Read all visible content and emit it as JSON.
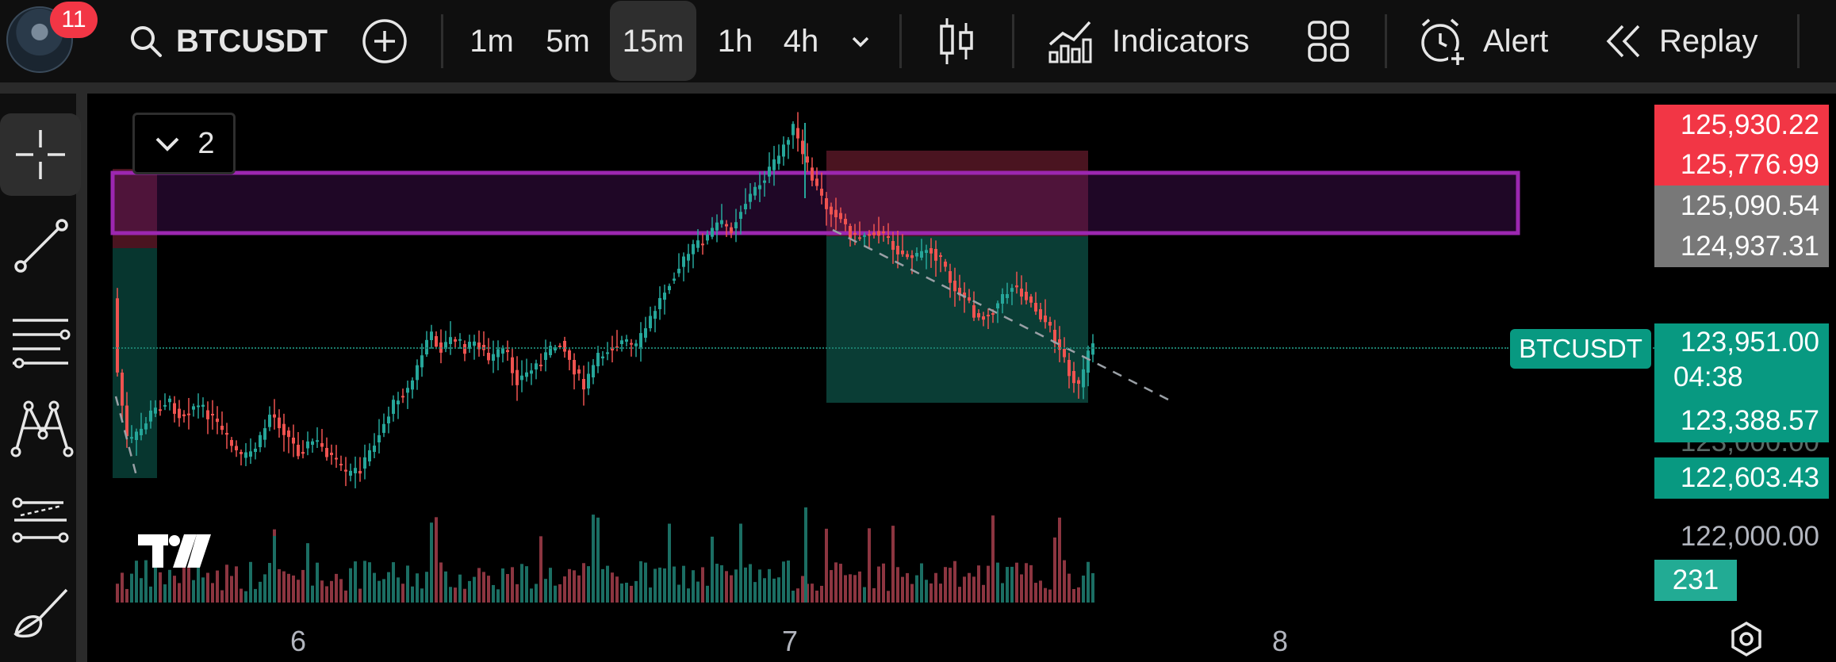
{
  "toolbar": {
    "notification_count": "11",
    "symbol": "BTCUSDT",
    "timeframes": [
      "1m",
      "5m",
      "15m",
      "1h",
      "4h"
    ],
    "active_timeframe": "15m",
    "indicators_label": "Indicators",
    "alert_label": "Alert",
    "replay_label": "Replay"
  },
  "left_tools": [
    "crosshair-icon",
    "trend-line-icon",
    "horizontal-lines-icon",
    "pattern-icon",
    "forecast-lines-icon",
    "brush-icon"
  ],
  "legend": {
    "count": "2"
  },
  "price_scale": {
    "labels": [
      {
        "value": "125,930.22",
        "style": "red",
        "top": 132
      },
      {
        "value": "125,776.99",
        "style": "red",
        "top": 182
      },
      {
        "value": "125,090.54",
        "style": "gray",
        "top": 234
      },
      {
        "value": "124,937.31",
        "style": "gray",
        "top": 285
      },
      {
        "value": "123,388.57",
        "style": "green",
        "top": 503
      },
      {
        "value": "122,603.43",
        "style": "green",
        "top": 577
      },
      {
        "value": "122,000.00",
        "style": "plain",
        "top": 651
      }
    ],
    "current_price": "123,951.00",
    "countdown": "04:38",
    "hidden_tick": "123,000.00",
    "volume": "231"
  },
  "price_line_label": "BTCUSDT",
  "x_axis": [
    {
      "label": "6",
      "x": 376
    },
    {
      "label": "7",
      "x": 996
    },
    {
      "label": "8",
      "x": 1614
    }
  ],
  "colors": {
    "up": "#26a69a",
    "down": "#ef5350",
    "zone_border": "#9c27b0",
    "stop": "#f23645",
    "target": "#089981"
  }
}
